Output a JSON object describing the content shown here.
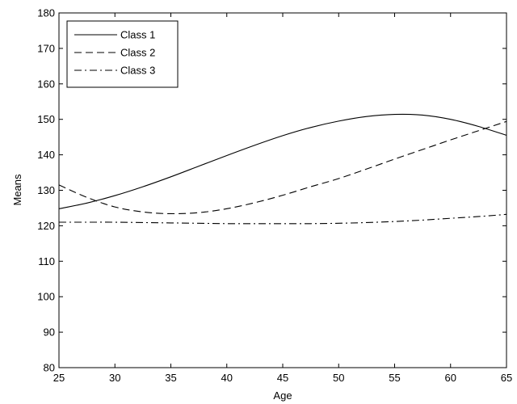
{
  "chart_data": {
    "type": "line",
    "title": "",
    "xlabel": "Age",
    "ylabel": "Means",
    "xlim": [
      25,
      65
    ],
    "ylim": [
      80,
      180
    ],
    "xticks": [
      25,
      30,
      35,
      40,
      45,
      50,
      55,
      60,
      65
    ],
    "yticks": [
      80,
      90,
      100,
      110,
      120,
      130,
      140,
      150,
      160,
      170,
      180
    ],
    "grid": false,
    "legend_position": "top-left",
    "x": [
      25,
      27.5,
      30,
      32.5,
      35,
      37.5,
      40,
      42.5,
      45,
      47.5,
      50,
      52.5,
      55,
      57.5,
      60,
      62.5,
      65
    ],
    "series": [
      {
        "name": "Class 1",
        "line_style": "solid",
        "color": "#000000",
        "values": [
          124.8,
          126.4,
          128.5,
          131.0,
          133.8,
          136.8,
          139.8,
          142.7,
          145.4,
          147.7,
          149.5,
          150.8,
          151.4,
          151.2,
          150.0,
          148.0,
          145.5
        ]
      },
      {
        "name": "Class 2",
        "line_style": "dashed",
        "color": "#000000",
        "values": [
          131.5,
          128.0,
          125.3,
          123.9,
          123.4,
          123.7,
          124.8,
          126.5,
          128.6,
          131.0,
          133.3,
          136.0,
          138.8,
          141.5,
          144.2,
          146.8,
          149.4
        ]
      },
      {
        "name": "Class 3",
        "line_style": "dash-dot",
        "color": "#000000",
        "values": [
          121.0,
          121.0,
          121.0,
          120.9,
          120.8,
          120.7,
          120.6,
          120.6,
          120.6,
          120.6,
          120.7,
          120.9,
          121.2,
          121.6,
          122.1,
          122.6,
          123.2
        ]
      }
    ]
  }
}
